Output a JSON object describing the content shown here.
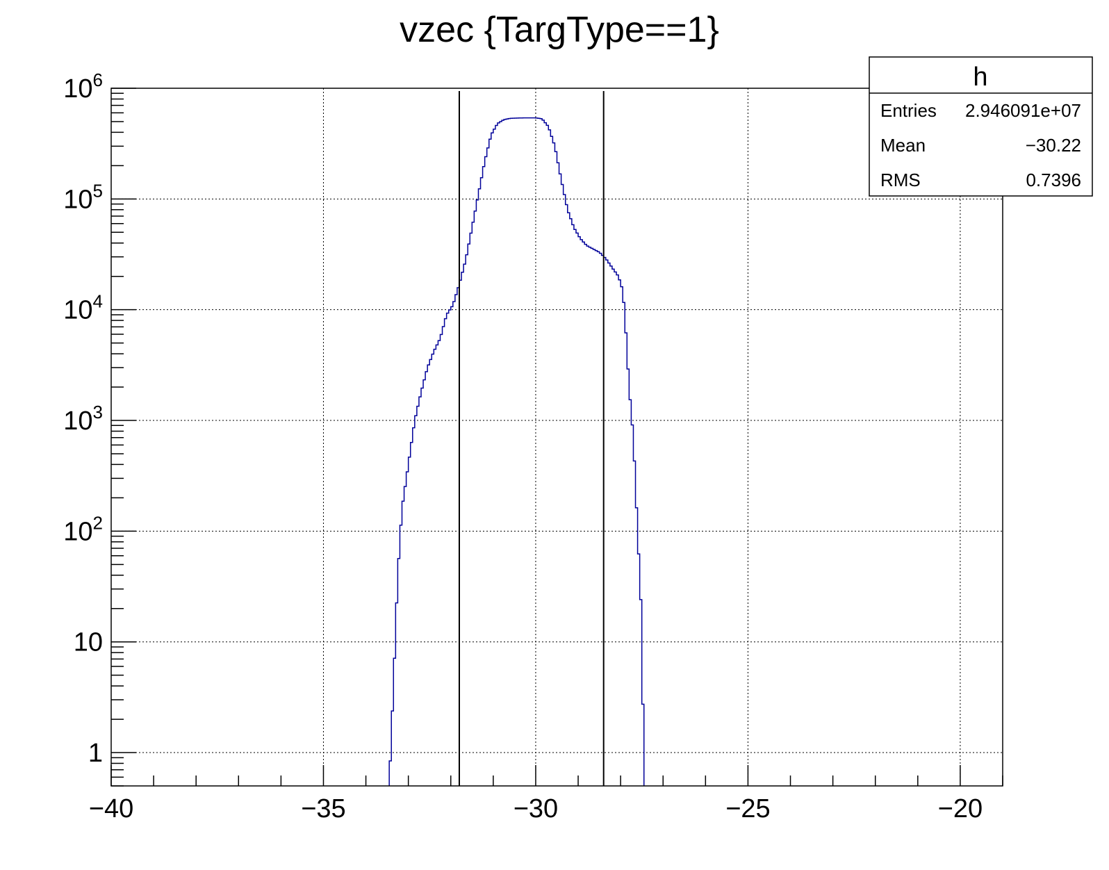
{
  "chart_data": {
    "type": "histogram",
    "title": "vzec {TargType==1}",
    "xlabel": "",
    "ylabel": "",
    "xlim": [
      -40,
      -19
    ],
    "ylim": [
      0.5,
      1000000
    ],
    "yscale": "log",
    "grid": true,
    "x_ticks": [
      {
        "value": -40,
        "label": "−40"
      },
      {
        "value": -35,
        "label": "−35"
      },
      {
        "value": -30,
        "label": "−30"
      },
      {
        "value": -25,
        "label": "−25"
      },
      {
        "value": -20,
        "label": "−20"
      }
    ],
    "y_ticks": [
      {
        "value": 1,
        "base": "1",
        "exp": ""
      },
      {
        "value": 10,
        "base": "10",
        "exp": ""
      },
      {
        "value": 100,
        "base": "10",
        "exp": "2"
      },
      {
        "value": 1000,
        "base": "10",
        "exp": "3"
      },
      {
        "value": 10000,
        "base": "10",
        "exp": "4"
      },
      {
        "value": 100000,
        "base": "10",
        "exp": "5"
      },
      {
        "value": 1000000,
        "base": "10",
        "exp": "6"
      }
    ],
    "series": [
      {
        "color": "#000099",
        "profile": [
          [
            -33.45,
            0.5
          ],
          [
            -33.35,
            4
          ],
          [
            -33.25,
            40
          ],
          [
            -33.15,
            160
          ],
          [
            -33.0,
            400
          ],
          [
            -32.85,
            1000
          ],
          [
            -32.7,
            1800
          ],
          [
            -32.55,
            3000
          ],
          [
            -32.4,
            4200
          ],
          [
            -32.25,
            5500
          ],
          [
            -32.1,
            9000
          ],
          [
            -31.95,
            11000
          ],
          [
            -31.8,
            17000
          ],
          [
            -31.65,
            28000
          ],
          [
            -31.5,
            55000
          ],
          [
            -31.35,
            110000
          ],
          [
            -31.2,
            220000
          ],
          [
            -31.05,
            380000
          ],
          [
            -30.9,
            480000
          ],
          [
            -30.75,
            520000
          ],
          [
            -30.6,
            535000
          ],
          [
            -30.3,
            540000
          ],
          [
            -30.0,
            540000
          ],
          [
            -29.85,
            530000
          ],
          [
            -29.7,
            450000
          ],
          [
            -29.55,
            300000
          ],
          [
            -29.4,
            150000
          ],
          [
            -29.25,
            80000
          ],
          [
            -29.1,
            55000
          ],
          [
            -28.95,
            44000
          ],
          [
            -28.8,
            38000
          ],
          [
            -28.5,
            33000
          ],
          [
            -28.35,
            29000
          ],
          [
            -28.2,
            24000
          ],
          [
            -28.05,
            20000
          ],
          [
            -27.95,
            15000
          ],
          [
            -27.9,
            9000
          ],
          [
            -27.8,
            2000
          ],
          [
            -27.7,
            700
          ],
          [
            -27.6,
            100
          ],
          [
            -27.5,
            15
          ],
          [
            -27.45,
            0.5
          ]
        ]
      }
    ],
    "vertical_lines": [
      -31.8,
      -28.4
    ],
    "stats_box": {
      "title": "h",
      "rows": [
        {
          "label": "Entries",
          "value": "2.946091e+07"
        },
        {
          "label": "Mean",
          "value": "−30.22"
        },
        {
          "label": "RMS",
          "value": "0.7396"
        }
      ]
    }
  }
}
